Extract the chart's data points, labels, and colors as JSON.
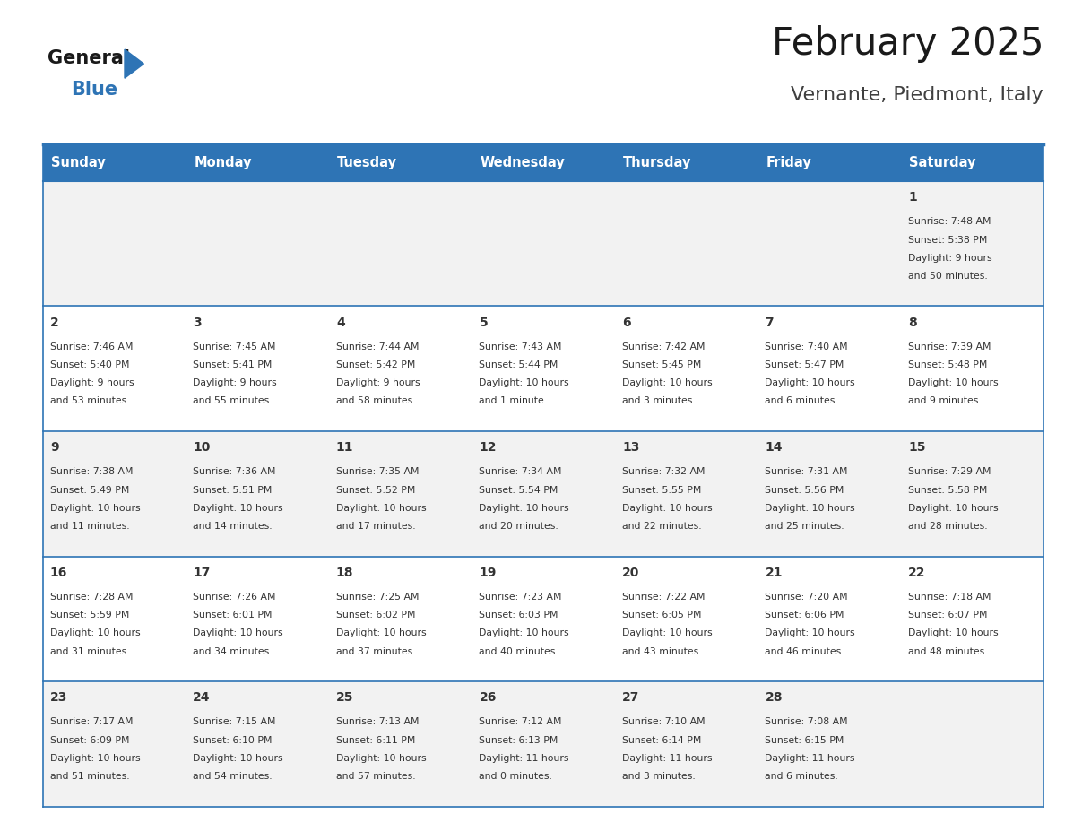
{
  "title": "February 2025",
  "subtitle": "Vernante, Piedmont, Italy",
  "header_bg": "#2E74B5",
  "header_text_color": "#FFFFFF",
  "day_names": [
    "Sunday",
    "Monday",
    "Tuesday",
    "Wednesday",
    "Thursday",
    "Friday",
    "Saturday"
  ],
  "cell_bg_even": "#F2F2F2",
  "cell_bg_odd": "#FFFFFF",
  "cell_text_color": "#333333",
  "border_color": "#2E74B5",
  "num_cols": 7,
  "logo_text1": "General",
  "logo_text2": "Blue",
  "logo_triangle_color": "#2E74B5",
  "days": [
    {
      "day": 1,
      "col": 6,
      "row": 0,
      "sunrise": "7:48 AM",
      "sunset": "5:38 PM",
      "daylight": "9 hours and 50 minutes."
    },
    {
      "day": 2,
      "col": 0,
      "row": 1,
      "sunrise": "7:46 AM",
      "sunset": "5:40 PM",
      "daylight": "9 hours and 53 minutes."
    },
    {
      "day": 3,
      "col": 1,
      "row": 1,
      "sunrise": "7:45 AM",
      "sunset": "5:41 PM",
      "daylight": "9 hours and 55 minutes."
    },
    {
      "day": 4,
      "col": 2,
      "row": 1,
      "sunrise": "7:44 AM",
      "sunset": "5:42 PM",
      "daylight": "9 hours and 58 minutes."
    },
    {
      "day": 5,
      "col": 3,
      "row": 1,
      "sunrise": "7:43 AM",
      "sunset": "5:44 PM",
      "daylight": "10 hours and 1 minute."
    },
    {
      "day": 6,
      "col": 4,
      "row": 1,
      "sunrise": "7:42 AM",
      "sunset": "5:45 PM",
      "daylight": "10 hours and 3 minutes."
    },
    {
      "day": 7,
      "col": 5,
      "row": 1,
      "sunrise": "7:40 AM",
      "sunset": "5:47 PM",
      "daylight": "10 hours and 6 minutes."
    },
    {
      "day": 8,
      "col": 6,
      "row": 1,
      "sunrise": "7:39 AM",
      "sunset": "5:48 PM",
      "daylight": "10 hours and 9 minutes."
    },
    {
      "day": 9,
      "col": 0,
      "row": 2,
      "sunrise": "7:38 AM",
      "sunset": "5:49 PM",
      "daylight": "10 hours and 11 minutes."
    },
    {
      "day": 10,
      "col": 1,
      "row": 2,
      "sunrise": "7:36 AM",
      "sunset": "5:51 PM",
      "daylight": "10 hours and 14 minutes."
    },
    {
      "day": 11,
      "col": 2,
      "row": 2,
      "sunrise": "7:35 AM",
      "sunset": "5:52 PM",
      "daylight": "10 hours and 17 minutes."
    },
    {
      "day": 12,
      "col": 3,
      "row": 2,
      "sunrise": "7:34 AM",
      "sunset": "5:54 PM",
      "daylight": "10 hours and 20 minutes."
    },
    {
      "day": 13,
      "col": 4,
      "row": 2,
      "sunrise": "7:32 AM",
      "sunset": "5:55 PM",
      "daylight": "10 hours and 22 minutes."
    },
    {
      "day": 14,
      "col": 5,
      "row": 2,
      "sunrise": "7:31 AM",
      "sunset": "5:56 PM",
      "daylight": "10 hours and 25 minutes."
    },
    {
      "day": 15,
      "col": 6,
      "row": 2,
      "sunrise": "7:29 AM",
      "sunset": "5:58 PM",
      "daylight": "10 hours and 28 minutes."
    },
    {
      "day": 16,
      "col": 0,
      "row": 3,
      "sunrise": "7:28 AM",
      "sunset": "5:59 PM",
      "daylight": "10 hours and 31 minutes."
    },
    {
      "day": 17,
      "col": 1,
      "row": 3,
      "sunrise": "7:26 AM",
      "sunset": "6:01 PM",
      "daylight": "10 hours and 34 minutes."
    },
    {
      "day": 18,
      "col": 2,
      "row": 3,
      "sunrise": "7:25 AM",
      "sunset": "6:02 PM",
      "daylight": "10 hours and 37 minutes."
    },
    {
      "day": 19,
      "col": 3,
      "row": 3,
      "sunrise": "7:23 AM",
      "sunset": "6:03 PM",
      "daylight": "10 hours and 40 minutes."
    },
    {
      "day": 20,
      "col": 4,
      "row": 3,
      "sunrise": "7:22 AM",
      "sunset": "6:05 PM",
      "daylight": "10 hours and 43 minutes."
    },
    {
      "day": 21,
      "col": 5,
      "row": 3,
      "sunrise": "7:20 AM",
      "sunset": "6:06 PM",
      "daylight": "10 hours and 46 minutes."
    },
    {
      "day": 22,
      "col": 6,
      "row": 3,
      "sunrise": "7:18 AM",
      "sunset": "6:07 PM",
      "daylight": "10 hours and 48 minutes."
    },
    {
      "day": 23,
      "col": 0,
      "row": 4,
      "sunrise": "7:17 AM",
      "sunset": "6:09 PM",
      "daylight": "10 hours and 51 minutes."
    },
    {
      "day": 24,
      "col": 1,
      "row": 4,
      "sunrise": "7:15 AM",
      "sunset": "6:10 PM",
      "daylight": "10 hours and 54 minutes."
    },
    {
      "day": 25,
      "col": 2,
      "row": 4,
      "sunrise": "7:13 AM",
      "sunset": "6:11 PM",
      "daylight": "10 hours and 57 minutes."
    },
    {
      "day": 26,
      "col": 3,
      "row": 4,
      "sunrise": "7:12 AM",
      "sunset": "6:13 PM",
      "daylight": "11 hours and 0 minutes."
    },
    {
      "day": 27,
      "col": 4,
      "row": 4,
      "sunrise": "7:10 AM",
      "sunset": "6:14 PM",
      "daylight": "11 hours and 3 minutes."
    },
    {
      "day": 28,
      "col": 5,
      "row": 4,
      "sunrise": "7:08 AM",
      "sunset": "6:15 PM",
      "daylight": "11 hours and 6 minutes."
    }
  ]
}
